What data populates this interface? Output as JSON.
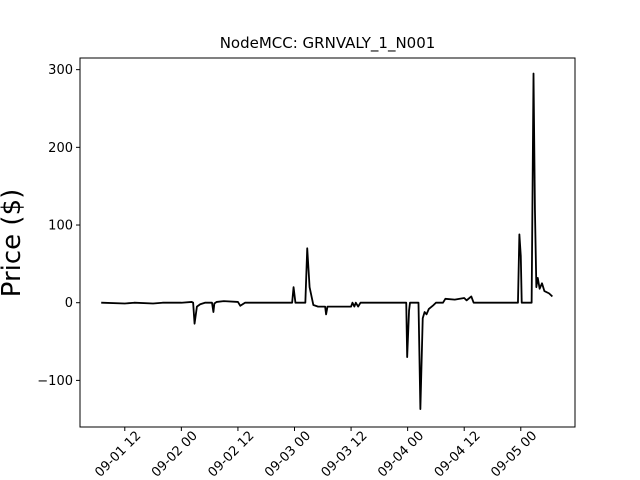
{
  "chart_data": {
    "type": "line",
    "title": "NodeMCC: GRNVALY_1_N001",
    "ylabel": "Price ($)",
    "x": [
      "09-01 07:00",
      "09-01 12:00",
      "09-01 14:00",
      "09-01 18:00",
      "09-01 20:00",
      "09-02 00:00",
      "09-02 02:12",
      "09-02 02:30",
      "09-02 02:48",
      "09-02 03:18",
      "09-02 04:00",
      "09-02 05:00",
      "09-02 06:30",
      "09-02 06:48",
      "09-02 07:00",
      "09-02 07:30",
      "09-02 09:00",
      "09-02 12:00",
      "09-02 12:30",
      "09-02 13:00",
      "09-02 13:30",
      "09-02 23:30",
      "09-02 23:48",
      "09-03 00:12",
      "09-03 02:18",
      "09-03 02:42",
      "09-03 03:12",
      "09-03 04:00",
      "09-03 05:00",
      "09-03 06:30",
      "09-03 06:42",
      "09-03 07:00",
      "09-03 12:00",
      "09-03 12:18",
      "09-03 12:42",
      "09-03 13:00",
      "09-03 13:30",
      "09-03 14:00",
      "09-03 23:42",
      "09-03 23:54",
      "09-04 00:18",
      "09-04 00:30",
      "09-04 02:18",
      "09-04 02:42",
      "09-04 03:12",
      "09-04 03:36",
      "09-04 04:00",
      "09-04 04:30",
      "09-04 05:30",
      "09-04 06:00",
      "09-04 07:30",
      "09-04 08:00",
      "09-04 10:00",
      "09-04 12:00",
      "09-04 12:30",
      "09-04 13:30",
      "09-04 14:00",
      "09-04 23:24",
      "09-04 23:42",
      "09-05 00:00",
      "09-05 00:12",
      "09-05 02:18",
      "09-05 02:42",
      "09-05 03:00",
      "09-05 03:18",
      "09-05 03:36",
      "09-05 04:00",
      "09-05 04:30",
      "09-05 05:00",
      "09-05 06:00",
      "09-05 06:42"
    ],
    "series": [
      {
        "color": "#000000",
        "values": [
          0,
          -1,
          0,
          -1,
          0,
          0,
          1,
          0,
          -27,
          -5,
          -2,
          0,
          0,
          -12,
          -1,
          1,
          2,
          1,
          -4,
          -2,
          0,
          0,
          20,
          0,
          0,
          70,
          20,
          -3,
          -5,
          -5,
          -15,
          -5,
          -5,
          0,
          -5,
          0,
          -5,
          0,
          0,
          -70,
          -10,
          0,
          0,
          -137,
          -20,
          -12,
          -15,
          -8,
          -3,
          0,
          0,
          5,
          4,
          6,
          3,
          8,
          0,
          0,
          88,
          60,
          0,
          0,
          295,
          120,
          20,
          32,
          18,
          25,
          15,
          12,
          8
        ]
      }
    ],
    "xlim": [
      "09-01 02:30",
      "09-05 11:30"
    ],
    "xticks": [
      {
        "value": "09-01 12:00",
        "label": "09-01 12"
      },
      {
        "value": "09-02 00:00",
        "label": "09-02 00"
      },
      {
        "value": "09-02 12:00",
        "label": "09-02 12"
      },
      {
        "value": "09-03 00:00",
        "label": "09-03 00"
      },
      {
        "value": "09-03 12:00",
        "label": "09-03 12"
      },
      {
        "value": "09-04 00:00",
        "label": "09-04 00"
      },
      {
        "value": "09-04 12:00",
        "label": "09-04 12"
      },
      {
        "value": "09-05 00:00",
        "label": "09-05 00"
      }
    ],
    "ylim": [
      -160,
      315
    ],
    "yticks": [
      {
        "value": -100,
        "label": "−100"
      },
      0,
      100,
      200,
      300
    ]
  }
}
